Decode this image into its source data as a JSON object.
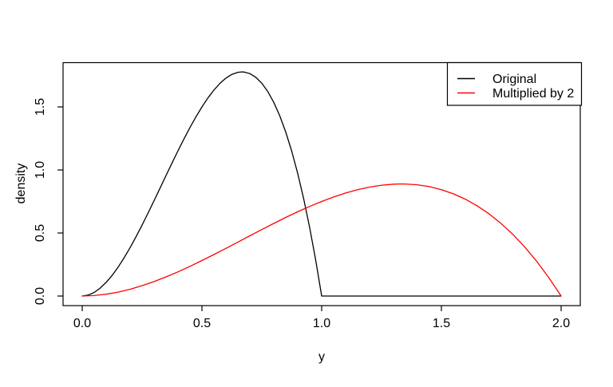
{
  "figure": {
    "background": "#ffffff",
    "text_color": "#000000"
  },
  "chart_data": {
    "type": "line",
    "title": "",
    "xlabel": "y",
    "ylabel": "density",
    "xlim": [
      -0.08,
      2.08
    ],
    "ylim": [
      -0.076,
      1.851
    ],
    "grid": false,
    "x_ticks": {
      "values": [
        0.0,
        0.5,
        1.0,
        1.5,
        2.0
      ],
      "labels": [
        "0.0",
        "0.5",
        "1.0",
        "1.5",
        "2.0"
      ]
    },
    "y_ticks": {
      "values": [
        0.0,
        0.5,
        1.0,
        1.5
      ],
      "labels": [
        "0.0",
        "0.5",
        "1.0",
        "1.5"
      ]
    },
    "legend": {
      "position": "top-right",
      "entries": [
        {
          "label": "Original",
          "color": "#000000"
        },
        {
          "label": "Multiplied by 2",
          "color": "#ff0000"
        }
      ]
    },
    "series": [
      {
        "name": "Original",
        "color": "#000000",
        "points": [
          [
            0.0,
            0.0
          ],
          [
            0.025,
            0.0073
          ],
          [
            0.05,
            0.0285
          ],
          [
            0.075,
            0.0624
          ],
          [
            0.1,
            0.108
          ],
          [
            0.125,
            0.1641
          ],
          [
            0.15,
            0.2295
          ],
          [
            0.175,
            0.3032
          ],
          [
            0.2,
            0.384
          ],
          [
            0.225,
            0.4708
          ],
          [
            0.25,
            0.5625
          ],
          [
            0.275,
            0.6579
          ],
          [
            0.3,
            0.756
          ],
          [
            0.325,
            0.8556
          ],
          [
            0.35,
            0.9555
          ],
          [
            0.375,
            1.0547
          ],
          [
            0.4,
            1.152
          ],
          [
            0.425,
            1.2463
          ],
          [
            0.45,
            1.3365
          ],
          [
            0.475,
            1.4214
          ],
          [
            0.5,
            1.5
          ],
          [
            0.525,
            1.5711
          ],
          [
            0.55,
            1.6335
          ],
          [
            0.575,
            1.6862
          ],
          [
            0.6,
            1.728
          ],
          [
            0.625,
            1.7578
          ],
          [
            0.65,
            1.7745
          ],
          [
            0.6667,
            1.7778
          ],
          [
            0.675,
            1.7769
          ],
          [
            0.7,
            1.764
          ],
          [
            0.725,
            1.7346
          ],
          [
            0.75,
            1.6875
          ],
          [
            0.775,
            1.6217
          ],
          [
            0.8,
            1.536
          ],
          [
            0.825,
            1.4293
          ],
          [
            0.85,
            1.3005
          ],
          [
            0.875,
            1.1484
          ],
          [
            0.9,
            0.972
          ],
          [
            0.925,
            0.7701
          ],
          [
            0.95,
            0.5415
          ],
          [
            0.975,
            0.2852
          ],
          [
            1.0,
            0.0
          ],
          [
            2.0,
            0.0
          ]
        ]
      },
      {
        "name": "Multiplied by 2",
        "color": "#ff0000",
        "points": [
          [
            0.0,
            0.0
          ],
          [
            0.05,
            0.0037
          ],
          [
            0.1,
            0.0143
          ],
          [
            0.15,
            0.0312
          ],
          [
            0.2,
            0.054
          ],
          [
            0.25,
            0.082
          ],
          [
            0.3,
            0.1148
          ],
          [
            0.35,
            0.1516
          ],
          [
            0.4,
            0.192
          ],
          [
            0.45,
            0.2354
          ],
          [
            0.5,
            0.2813
          ],
          [
            0.55,
            0.329
          ],
          [
            0.6,
            0.378
          ],
          [
            0.65,
            0.4278
          ],
          [
            0.7,
            0.4778
          ],
          [
            0.75,
            0.5273
          ],
          [
            0.8,
            0.576
          ],
          [
            0.85,
            0.6232
          ],
          [
            0.9,
            0.6683
          ],
          [
            0.95,
            0.7107
          ],
          [
            1.0,
            0.75
          ],
          [
            1.05,
            0.7855
          ],
          [
            1.1,
            0.8168
          ],
          [
            1.15,
            0.8431
          ],
          [
            1.2,
            0.864
          ],
          [
            1.25,
            0.8789
          ],
          [
            1.3,
            0.8873
          ],
          [
            1.3333,
            0.8889
          ],
          [
            1.35,
            0.8885
          ],
          [
            1.4,
            0.882
          ],
          [
            1.45,
            0.8673
          ],
          [
            1.5,
            0.8438
          ],
          [
            1.55,
            0.8108
          ],
          [
            1.6,
            0.768
          ],
          [
            1.65,
            0.7147
          ],
          [
            1.7,
            0.6503
          ],
          [
            1.75,
            0.5742
          ],
          [
            1.8,
            0.486
          ],
          [
            1.85,
            0.385
          ],
          [
            1.9,
            0.2708
          ],
          [
            1.95,
            0.1426
          ],
          [
            2.0,
            0.0
          ]
        ]
      }
    ]
  }
}
